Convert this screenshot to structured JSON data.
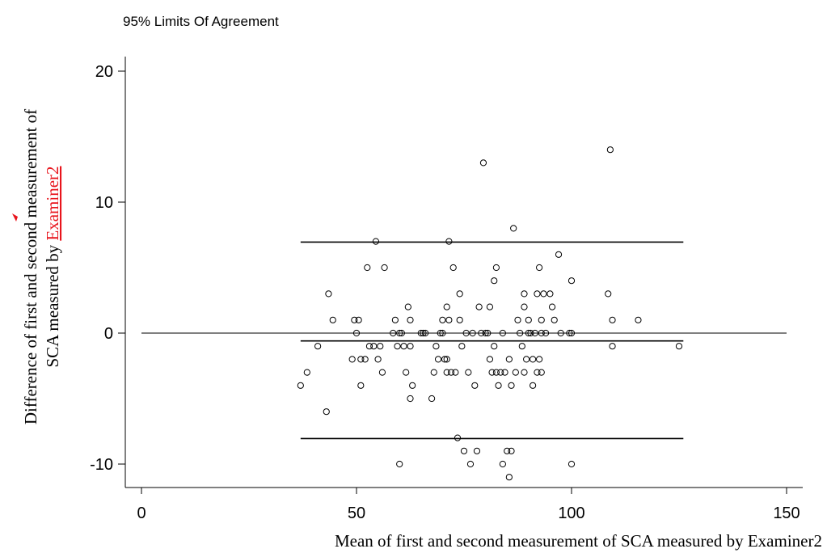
{
  "chart_data": {
    "type": "scatter",
    "title": "95% Limits Of Agreement",
    "xlabel": "Mean of first and second measurement of SCA measured by Examiner2",
    "ylabel_line1": "Difference of first and second measurement of",
    "ylabel_line2_prefix": "SCA measured by ",
    "ylabel_line2_link": "Examiner2",
    "xlim": [
      0,
      150
    ],
    "ylim": [
      -12,
      20
    ],
    "xticks": [
      0,
      50,
      100,
      150
    ],
    "yticks": [
      -10,
      0,
      10,
      20
    ],
    "xtick_labels": [
      "0",
      "50",
      "100",
      "150"
    ],
    "ytick_labels": [
      "-10",
      "0",
      "10",
      "20"
    ],
    "grid": false,
    "reference_line": {
      "y": 0,
      "x_range": [
        0,
        150
      ]
    },
    "mean_difference": {
      "y": -0.6,
      "x_range": [
        37,
        126
      ]
    },
    "upper_limit": {
      "y": 6.95,
      "x_range": [
        37,
        126
      ]
    },
    "lower_limit": {
      "y": -8.05,
      "x_range": [
        37,
        126
      ]
    },
    "points": [
      [
        37,
        -4
      ],
      [
        38.5,
        -3
      ],
      [
        41,
        -1
      ],
      [
        43,
        -6
      ],
      [
        43.5,
        3
      ],
      [
        44.5,
        1
      ],
      [
        49,
        -2
      ],
      [
        49.5,
        1
      ],
      [
        50,
        0
      ],
      [
        50.5,
        1
      ],
      [
        51,
        -2
      ],
      [
        51,
        -4
      ],
      [
        52,
        -2
      ],
      [
        52.5,
        5
      ],
      [
        53,
        -1
      ],
      [
        54,
        -1
      ],
      [
        54.5,
        7
      ],
      [
        55,
        -2
      ],
      [
        55.5,
        -1
      ],
      [
        56,
        -3
      ],
      [
        56.5,
        5
      ],
      [
        58.5,
        0
      ],
      [
        59,
        1
      ],
      [
        59.5,
        -1
      ],
      [
        60,
        0
      ],
      [
        60.5,
        0
      ],
      [
        60,
        -10
      ],
      [
        61,
        -1
      ],
      [
        61.5,
        -3
      ],
      [
        62,
        2
      ],
      [
        62.5,
        1
      ],
      [
        62.5,
        -1
      ],
      [
        63,
        -4
      ],
      [
        62.5,
        -5
      ],
      [
        65,
        0
      ],
      [
        65.5,
        0
      ],
      [
        66,
        0
      ],
      [
        67.5,
        -5
      ],
      [
        68,
        -3
      ],
      [
        68.5,
        -1
      ],
      [
        69,
        -2
      ],
      [
        69.5,
        0
      ],
      [
        70,
        1
      ],
      [
        70,
        0
      ],
      [
        70.5,
        -2
      ],
      [
        71,
        -3
      ],
      [
        71,
        2
      ],
      [
        71,
        -2
      ],
      [
        71.5,
        1
      ],
      [
        71.5,
        7
      ],
      [
        72,
        -3
      ],
      [
        72.5,
        5
      ],
      [
        73,
        -3
      ],
      [
        73.5,
        -8
      ],
      [
        74,
        1
      ],
      [
        74,
        3
      ],
      [
        74.5,
        -1
      ],
      [
        75,
        -9
      ],
      [
        75.5,
        0
      ],
      [
        76,
        -3
      ],
      [
        76.5,
        -10
      ],
      [
        77,
        0
      ],
      [
        77.5,
        -4
      ],
      [
        78,
        -9
      ],
      [
        78.5,
        2
      ],
      [
        79,
        0
      ],
      [
        79.5,
        13
      ],
      [
        80,
        0
      ],
      [
        80.5,
        0
      ],
      [
        81,
        2
      ],
      [
        81,
        -2
      ],
      [
        81.5,
        -3
      ],
      [
        82,
        4
      ],
      [
        82,
        -1
      ],
      [
        82.5,
        5
      ],
      [
        82.5,
        -3
      ],
      [
        83,
        -4
      ],
      [
        83.5,
        -3
      ],
      [
        84,
        -10
      ],
      [
        84,
        0
      ],
      [
        84.5,
        -3
      ],
      [
        85,
        -9
      ],
      [
        85.5,
        -2
      ],
      [
        85.5,
        -11
      ],
      [
        86,
        -9
      ],
      [
        86,
        -4
      ],
      [
        86.5,
        8
      ],
      [
        87,
        -3
      ],
      [
        87.5,
        1
      ],
      [
        88,
        0
      ],
      [
        88.5,
        -1
      ],
      [
        89,
        3
      ],
      [
        89,
        2
      ],
      [
        89,
        -3
      ],
      [
        89.5,
        -2
      ],
      [
        90,
        0
      ],
      [
        90,
        1
      ],
      [
        90.5,
        0
      ],
      [
        91,
        -2
      ],
      [
        91,
        -4
      ],
      [
        91.5,
        0
      ],
      [
        92,
        3
      ],
      [
        92,
        -3
      ],
      [
        92.5,
        5
      ],
      [
        92.5,
        -2
      ],
      [
        93,
        1
      ],
      [
        93,
        0
      ],
      [
        93,
        -3
      ],
      [
        93.5,
        3
      ],
      [
        94,
        0
      ],
      [
        95,
        3
      ],
      [
        95.5,
        2
      ],
      [
        96,
        1
      ],
      [
        97,
        6
      ],
      [
        97.5,
        0
      ],
      [
        99.5,
        0
      ],
      [
        100,
        4
      ],
      [
        100,
        0
      ],
      [
        100,
        -10
      ],
      [
        108.5,
        3
      ],
      [
        109,
        14
      ],
      [
        109.5,
        1
      ],
      [
        109.5,
        -1
      ],
      [
        115.5,
        1
      ],
      [
        125,
        -1
      ]
    ]
  }
}
